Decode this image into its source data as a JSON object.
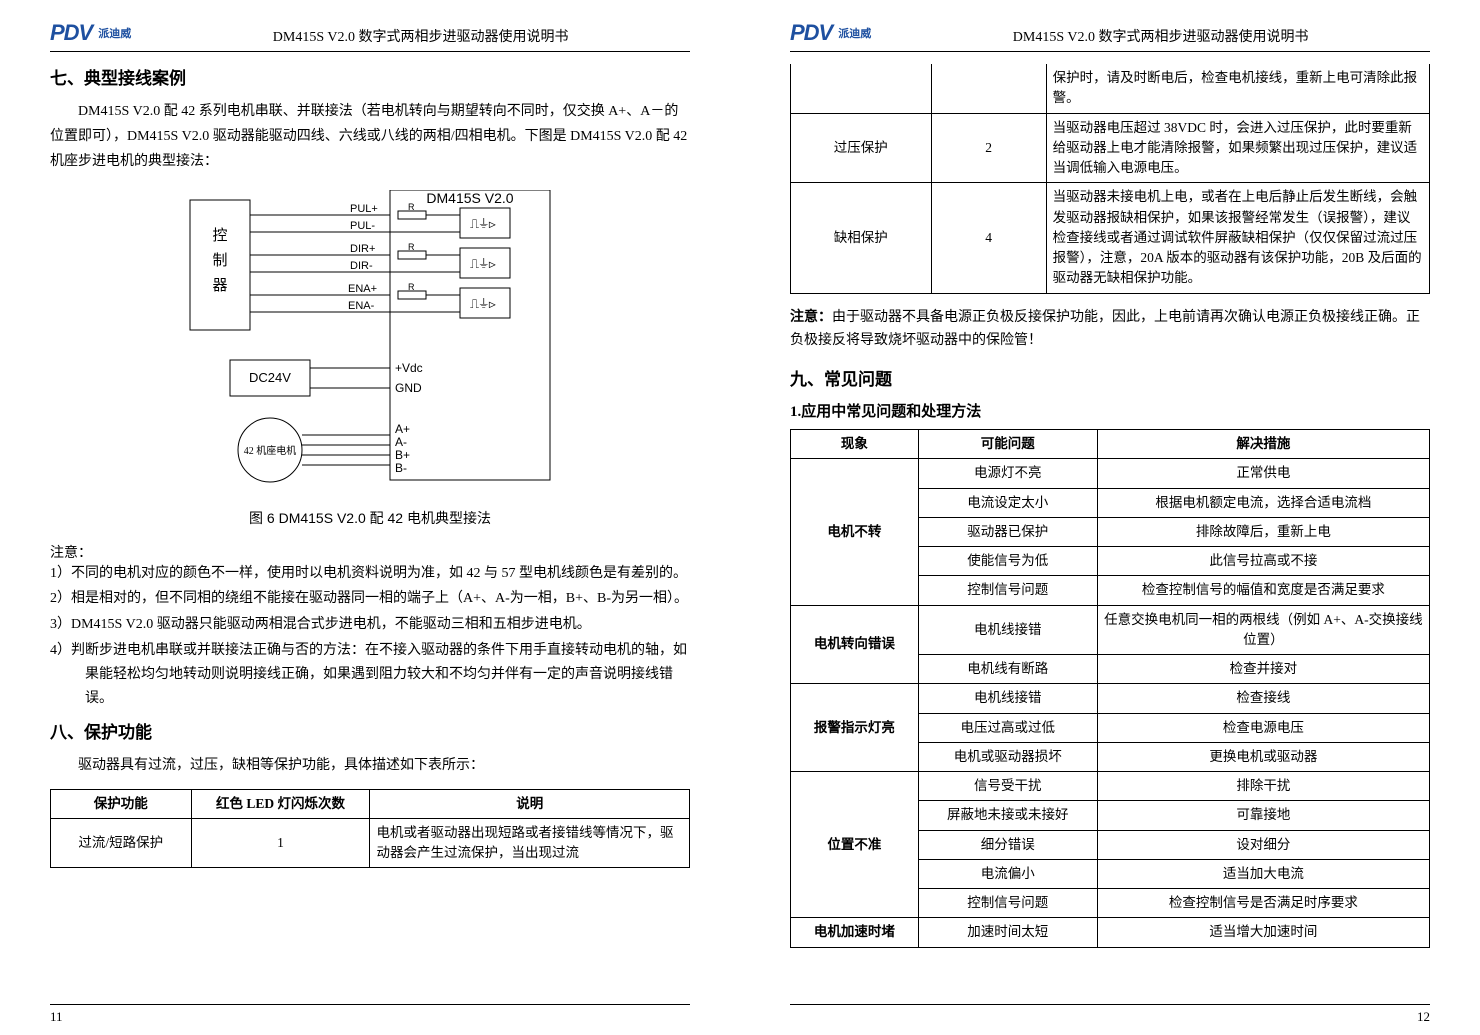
{
  "logo": {
    "brand": "PDV",
    "sub": "派迪威"
  },
  "header_title": "DM415S V2.0 数字式两相步进驱动器使用说明书",
  "left": {
    "section7_title": "七、典型接线案例",
    "intro": "DM415S V2.0 配 42 系列电机串联、并联接法（若电机转向与期望转向不同时，仅交换 A+、A－的位置即可），DM415S V2.0 驱动器能驱动四线、六线或八线的两相/四相电机。下图是 DM415S V2.0 配 42 机座步进电机的典型接法：",
    "diagram": {
      "title": "DM415S V2.0",
      "controller": "控制器",
      "signals": [
        "PUL+",
        "PUL-",
        "DIR+",
        "DIR-",
        "ENA+",
        "ENA-"
      ],
      "power_box": "DC24V",
      "vdc": "+Vdc",
      "gnd": "GND",
      "motor": "42 机座电机",
      "phases": [
        "A+",
        "A-",
        "B+",
        "B-"
      ],
      "r_label": "R"
    },
    "caption": "图 6  DM415S V2.0 配 42 电机典型接法",
    "note_label": "注意：",
    "notes": [
      "1）不同的电机对应的颜色不一样，使用时以电机资料说明为准，如 42 与 57 型电机线颜色是有差别的。",
      "2）相是相对的，但不同相的绕组不能接在驱动器同一相的端子上（A+、A-为一相，B+、B-为另一相）。",
      "3）DM415S V2.0 驱动器只能驱动两相混合式步进电机，不能驱动三相和五相步进电机。",
      "4）判断步进电机串联或并联接法正确与否的方法：在不接入驱动器的条件下用手直接转动电机的轴，如果能轻松均匀地转动则说明接线正确，如果遇到阻力较大和不均匀并伴有一定的声音说明接线错误。"
    ],
    "section8_title": "八、保护功能",
    "section8_intro": "驱动器具有过流，过压，缺相等保护功能，具体描述如下表所示：",
    "protect_table": {
      "headers": [
        "保护功能",
        "红色 LED 灯闪烁次数",
        "说明"
      ],
      "rows": [
        {
          "c1": "过流/短路保护",
          "c2": "1",
          "c3": "电机或者驱动器出现短路或者接错线等情况下，驱动器会产生过流保护，当出现过流"
        }
      ]
    },
    "page_num": "11"
  },
  "right": {
    "protect_continue": [
      {
        "c1": "",
        "c2": "",
        "c3": "保护时，请及时断电后，检查电机接线，重新上电可清除此报警。"
      },
      {
        "c1": "过压保护",
        "c2": "2",
        "c3": "当驱动器电压超过 38VDC 时，会进入过压保护，此时要重新给驱动器上电才能清除报警，如果频繁出现过压保护，建议适当调低输入电源电压。"
      },
      {
        "c1": "缺相保护",
        "c2": "4",
        "c3": "当驱动器未接电机上电，或者在上电后静止后发生断线，会触发驱动器报缺相保护，如果该报警经常发生（误报警），建议检查接线或者通过调试软件屏蔽缺相保护（仅仅保留过流过压报警），注意，20A 版本的驱动器有该保护功能，20B 及后面的驱动器无缺相保护功能。"
      }
    ],
    "polarity_note": "注意：由于驱动器不具备电源正负极反接保护功能，因此，上电前请再次确认电源正负极接线正确。正负极接反将导致烧坏驱动器中的保险管！",
    "polarity_note_label": "注意：",
    "polarity_note_body": "由于驱动器不具备电源正负极反接保护功能，因此，上电前请再次确认电源正负极接线正确。正负极接反将导致烧坏驱动器中的保险管！",
    "section9_title": "九、常见问题",
    "sub_heading": "1.应用中常见问题和处理方法",
    "faq_table": {
      "headers": [
        "现象",
        "可能问题",
        "解决措施"
      ],
      "groups": [
        {
          "cat": "电机不转",
          "rows": [
            {
              "p": "电源灯不亮",
              "s": "正常供电"
            },
            {
              "p": "电流设定太小",
              "s": "根据电机额定电流，选择合适电流档"
            },
            {
              "p": "驱动器已保护",
              "s": "排除故障后，重新上电"
            },
            {
              "p": "使能信号为低",
              "s": "此信号拉高或不接"
            },
            {
              "p": "控制信号问题",
              "s": "检查控制信号的幅值和宽度是否满足要求"
            }
          ]
        },
        {
          "cat": "电机转向错误",
          "rows": [
            {
              "p": "电机线接错",
              "s": "任意交换电机同一相的两根线（例如 A+、A-交换接线位置）"
            },
            {
              "p": "电机线有断路",
              "s": "检查并接对"
            }
          ]
        },
        {
          "cat": "报警指示灯亮",
          "rows": [
            {
              "p": "电机线接错",
              "s": "检查接线"
            },
            {
              "p": "电压过高或过低",
              "s": "检查电源电压"
            },
            {
              "p": "电机或驱动器损坏",
              "s": "更换电机或驱动器"
            }
          ]
        },
        {
          "cat": "位置不准",
          "rows": [
            {
              "p": "信号受干扰",
              "s": "排除干扰"
            },
            {
              "p": "屏蔽地未接或未接好",
              "s": "可靠接地"
            },
            {
              "p": "细分错误",
              "s": "设对细分"
            },
            {
              "p": "电流偏小",
              "s": "适当加大电流"
            },
            {
              "p": "控制信号问题",
              "s": "检查控制信号是否满足时序要求"
            }
          ]
        },
        {
          "cat": "电机加速时堵",
          "rows": [
            {
              "p": "加速时间太短",
              "s": "适当增大加速时间"
            }
          ]
        }
      ]
    },
    "page_num": "12"
  }
}
